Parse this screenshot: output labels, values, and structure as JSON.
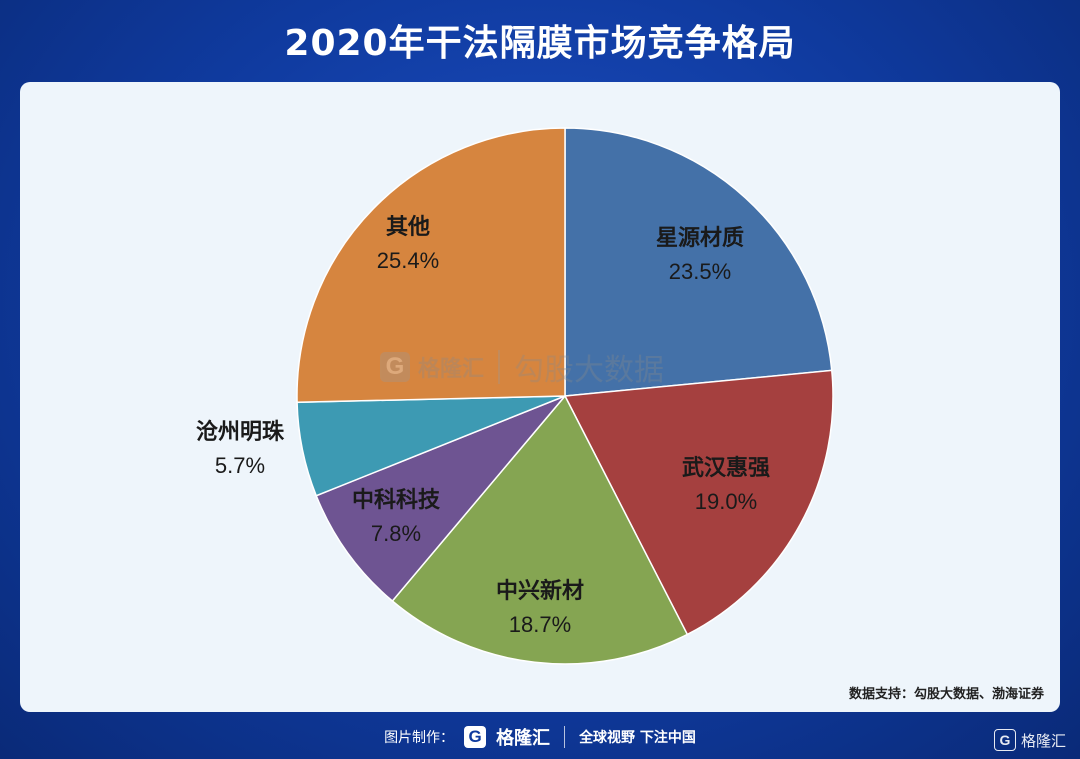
{
  "title": "2020年干法隔膜市场竞争格局",
  "chart_data": {
    "type": "pie",
    "slices": [
      {
        "label": "星源材质",
        "value": 23.5,
        "value_label": "23.5%",
        "color": "#4471a8"
      },
      {
        "label": "武汉惠强",
        "value": 19.0,
        "value_label": "19.0%",
        "color": "#a5403f"
      },
      {
        "label": "中兴新材",
        "value": 18.7,
        "value_label": "18.7%",
        "color": "#85a552"
      },
      {
        "label": "中科科技",
        "value": 7.8,
        "value_label": "7.8%",
        "color": "#6e5492"
      },
      {
        "label": "沧州明珠",
        "value": 5.7,
        "value_label": "5.7%",
        "color": "#3d9ab3"
      },
      {
        "label": "其他",
        "value": 25.4,
        "value_label": "25.4%",
        "color": "#d6853f"
      }
    ],
    "start_angle": "12 o'clock",
    "direction": "clockwise"
  },
  "watermark": {
    "brand": "格隆汇",
    "text": "勾股大数据"
  },
  "source": "数据支持：勾股大数据、渤海证券",
  "footer": {
    "label": "图片制作：",
    "brand": "格隆汇",
    "slogan": "全球视野 下注中国"
  },
  "corner_logo": {
    "brand": "格隆汇"
  },
  "icons": {
    "logo": "gelonghui-logo-icon"
  }
}
